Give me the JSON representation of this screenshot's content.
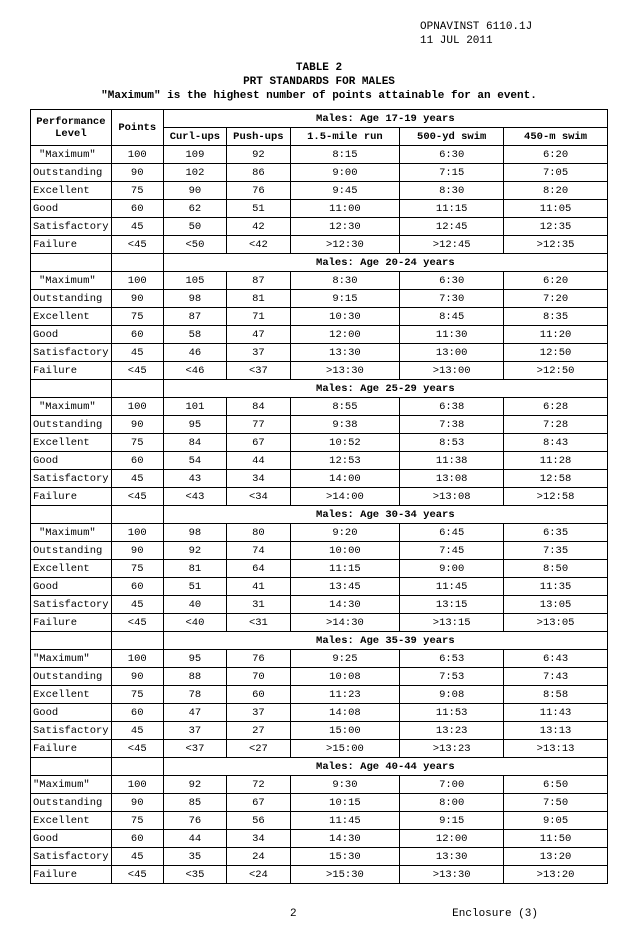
{
  "header": {
    "doc_id": "OPNAVINST 6110.1J",
    "date": "11 JUL 2011"
  },
  "title": {
    "table_num": "TABLE 2",
    "main": "PRT STANDARDS FOR MALES",
    "subtitle": "\"Maximum\" is the highest number of points attainable for an event."
  },
  "columns": {
    "perf": "Performance Level",
    "points": "Points",
    "curlups": "Curl-ups",
    "pushups": "Push-ups",
    "run": "1.5-mile run",
    "swim500": "500-yd swim",
    "swim450": "450-m swim"
  },
  "groups": [
    {
      "header": "Males:  Age 17-19 years",
      "rows": [
        {
          "level": "\"Maximum\"",
          "indent": true,
          "pts": "100",
          "curl": "109",
          "push": "92",
          "run": "8:15",
          "s500": "6:30",
          "s450": "6:20"
        },
        {
          "level": "Outstanding",
          "pts": "90",
          "curl": "102",
          "push": "86",
          "run": "9:00",
          "s500": "7:15",
          "s450": "7:05"
        },
        {
          "level": "Excellent",
          "pts": "75",
          "curl": "90",
          "push": "76",
          "run": "9:45",
          "s500": "8:30",
          "s450": "8:20"
        },
        {
          "level": "Good",
          "pts": "60",
          "curl": "62",
          "push": "51",
          "run": "11:00",
          "s500": "11:15",
          "s450": "11:05"
        },
        {
          "level": "Satisfactory",
          "pts": "45",
          "curl": "50",
          "push": "42",
          "run": "12:30",
          "s500": "12:45",
          "s450": "12:35"
        },
        {
          "level": "Failure",
          "pts": "<45",
          "curl": "<50",
          "push": "<42",
          "run": ">12:30",
          "s500": ">12:45",
          "s450": ">12:35"
        }
      ]
    },
    {
      "header": "Males:  Age 20-24 years",
      "rows": [
        {
          "level": "\"Maximum\"",
          "indent": true,
          "pts": "100",
          "curl": "105",
          "push": "87",
          "run": "8:30",
          "s500": "6:30",
          "s450": "6:20"
        },
        {
          "level": "Outstanding",
          "pts": "90",
          "curl": "98",
          "push": "81",
          "run": "9:15",
          "s500": "7:30",
          "s450": "7:20"
        },
        {
          "level": "Excellent",
          "pts": "75",
          "curl": "87",
          "push": "71",
          "run": "10:30",
          "s500": "8:45",
          "s450": "8:35"
        },
        {
          "level": "Good",
          "pts": "60",
          "curl": "58",
          "push": "47",
          "run": "12:00",
          "s500": "11:30",
          "s450": "11:20"
        },
        {
          "level": "Satisfactory",
          "pts": "45",
          "curl": "46",
          "push": "37",
          "run": "13:30",
          "s500": "13:00",
          "s450": "12:50"
        },
        {
          "level": "Failure",
          "pts": "<45",
          "curl": "<46",
          "push": "<37",
          "run": ">13:30",
          "s500": ">13:00",
          "s450": ">12:50"
        }
      ]
    },
    {
      "header": "Males:  Age 25-29 years",
      "rows": [
        {
          "level": "\"Maximum\"",
          "indent": true,
          "pts": "100",
          "curl": "101",
          "push": "84",
          "run": "8:55",
          "s500": "6:38",
          "s450": "6:28"
        },
        {
          "level": "Outstanding",
          "pts": "90",
          "curl": "95",
          "push": "77",
          "run": "9:38",
          "s500": "7:38",
          "s450": "7:28"
        },
        {
          "level": "Excellent",
          "pts": "75",
          "curl": "84",
          "push": "67",
          "run": "10:52",
          "s500": "8:53",
          "s450": "8:43"
        },
        {
          "level": "Good",
          "pts": "60",
          "curl": "54",
          "push": "44",
          "run": "12:53",
          "s500": "11:38",
          "s450": "11:28"
        },
        {
          "level": "Satisfactory",
          "pts": "45",
          "curl": "43",
          "push": "34",
          "run": "14:00",
          "s500": "13:08",
          "s450": "12:58"
        },
        {
          "level": "Failure",
          "pts": "<45",
          "curl": "<43",
          "push": "<34",
          "run": ">14:00",
          "s500": ">13:08",
          "s450": ">12:58"
        }
      ]
    },
    {
      "header": "Males:  Age 30-34 years",
      "rows": [
        {
          "level": "\"Maximum\"",
          "indent": true,
          "pts": "100",
          "curl": "98",
          "push": "80",
          "run": "9:20",
          "s500": "6:45",
          "s450": "6:35"
        },
        {
          "level": "Outstanding",
          "pts": "90",
          "curl": "92",
          "push": "74",
          "run": "10:00",
          "s500": "7:45",
          "s450": "7:35"
        },
        {
          "level": "Excellent",
          "pts": "75",
          "curl": "81",
          "push": "64",
          "run": "11:15",
          "s500": "9:00",
          "s450": "8:50"
        },
        {
          "level": "Good",
          "pts": "60",
          "curl": "51",
          "push": "41",
          "run": "13:45",
          "s500": "11:45",
          "s450": "11:35"
        },
        {
          "level": "Satisfactory",
          "pts": "45",
          "curl": "40",
          "push": "31",
          "run": "14:30",
          "s500": "13:15",
          "s450": "13:05"
        },
        {
          "level": "Failure",
          "pts": "<45",
          "curl": "<40",
          "push": "<31",
          "run": ">14:30",
          "s500": ">13:15",
          "s450": ">13:05"
        }
      ]
    },
    {
      "header": "Males:  Age 35-39 years",
      "rows": [
        {
          "level": "\"Maximum\"",
          "pts": "100",
          "curl": "95",
          "push": "76",
          "run": "9:25",
          "s500": "6:53",
          "s450": "6:43"
        },
        {
          "level": "Outstanding",
          "pts": "90",
          "curl": "88",
          "push": "70",
          "run": "10:08",
          "s500": "7:53",
          "s450": "7:43"
        },
        {
          "level": "Excellent",
          "pts": "75",
          "curl": "78",
          "push": "60",
          "run": "11:23",
          "s500": "9:08",
          "s450": "8:58"
        },
        {
          "level": "Good",
          "pts": "60",
          "curl": "47",
          "push": "37",
          "run": "14:08",
          "s500": "11:53",
          "s450": "11:43"
        },
        {
          "level": "Satisfactory",
          "pts": "45",
          "curl": "37",
          "push": "27",
          "run": "15:00",
          "s500": "13:23",
          "s450": "13:13"
        },
        {
          "level": "Failure",
          "pts": "<45",
          "curl": "<37",
          "push": "<27",
          "run": ">15:00",
          "s500": ">13:23",
          "s450": ">13:13"
        }
      ]
    },
    {
      "header": "Males:  Age 40-44 years",
      "rows": [
        {
          "level": "\"Maximum\"",
          "pts": "100",
          "curl": "92",
          "push": "72",
          "run": "9:30",
          "s500": "7:00",
          "s450": "6:50"
        },
        {
          "level": "Outstanding",
          "pts": "90",
          "curl": "85",
          "push": "67",
          "run": "10:15",
          "s500": "8:00",
          "s450": "7:50"
        },
        {
          "level": "Excellent",
          "pts": "75",
          "curl": "76",
          "push": "56",
          "run": "11:45",
          "s500": "9:15",
          "s450": "9:05"
        },
        {
          "level": "Good",
          "pts": "60",
          "curl": "44",
          "push": "34",
          "run": "14:30",
          "s500": "12:00",
          "s450": "11:50"
        },
        {
          "level": "Satisfactory",
          "pts": "45",
          "curl": "35",
          "push": "24",
          "run": "15:30",
          "s500": "13:30",
          "s450": "13:20"
        },
        {
          "level": "Failure",
          "pts": "<45",
          "curl": "<35",
          "push": "<24",
          "run": ">15:30",
          "s500": ">13:30",
          "s450": ">13:20"
        }
      ]
    }
  ],
  "footer": {
    "page": "2",
    "enclosure": "Enclosure (3)"
  }
}
